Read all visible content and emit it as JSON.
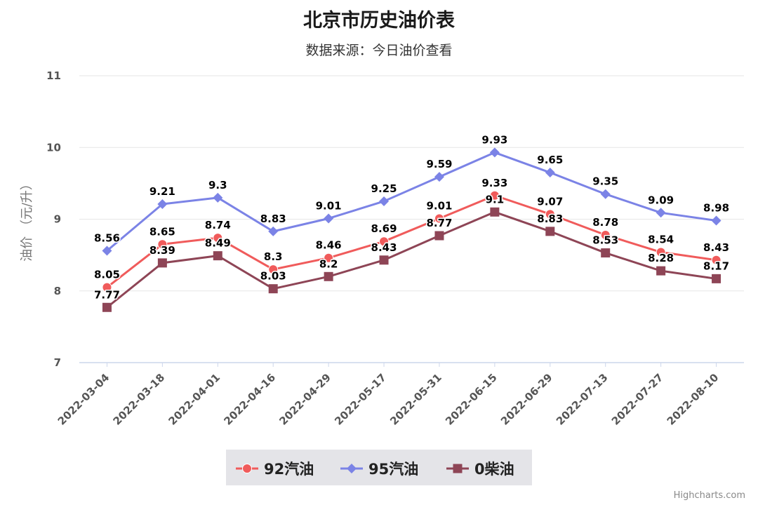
{
  "chart_data": {
    "type": "line",
    "title": "北京市历史油价表",
    "subtitle": "数据来源：今日油价查看",
    "ylabel": "油价 （元/升）",
    "xlabel": "",
    "ylim": [
      7,
      11
    ],
    "yticks": [
      7,
      8,
      9,
      10,
      11
    ],
    "grid": true,
    "legend_position": "bottom",
    "categories": [
      "2022-03-04",
      "2022-03-18",
      "2022-04-01",
      "2022-04-16",
      "2022-04-29",
      "2022-05-17",
      "2022-05-31",
      "2022-06-15",
      "2022-06-29",
      "2022-07-13",
      "2022-07-27",
      "2022-08-10"
    ],
    "series": [
      {
        "name": "92汽油",
        "color": "#f05b5b",
        "marker": "circle",
        "values": [
          8.05,
          8.65,
          8.74,
          8.3,
          8.46,
          8.69,
          9.01,
          9.33,
          9.07,
          8.78,
          8.54,
          8.43
        ]
      },
      {
        "name": "95汽油",
        "color": "#7b83e6",
        "marker": "diamond",
        "values": [
          8.56,
          9.21,
          9.3,
          8.83,
          9.01,
          9.25,
          9.59,
          9.93,
          9.65,
          9.35,
          9.09,
          8.98
        ]
      },
      {
        "name": "0柴油",
        "color": "#8e4556",
        "marker": "square",
        "values": [
          7.77,
          8.39,
          8.49,
          8.03,
          8.2,
          8.43,
          8.77,
          9.1,
          8.83,
          8.53,
          8.28,
          8.17
        ]
      }
    ],
    "legend_background": "#e4e4e8",
    "credits": "Highcharts.com"
  }
}
